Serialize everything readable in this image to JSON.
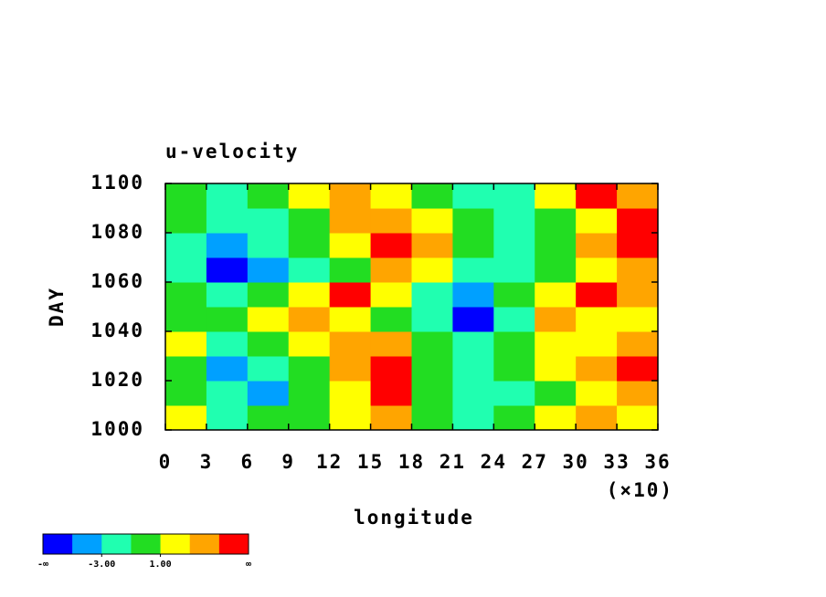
{
  "chart_data": {
    "type": "heatmap",
    "title": "u-velocity",
    "x_label": "longitude",
    "y_label": "DAY",
    "x_multiplier": "(×10)",
    "xlim": [
      0,
      36
    ],
    "xticks": [
      0,
      3,
      6,
      9,
      12,
      15,
      18,
      21,
      24,
      27,
      30,
      33,
      36
    ],
    "ylim": [
      1000,
      1100
    ],
    "yticks": [
      1000,
      1020,
      1040,
      1060,
      1080,
      1100
    ],
    "x": [
      1.5,
      4.5,
      7.5,
      10.5,
      13.5,
      16.5,
      19.5,
      22.5,
      25.5,
      28.5,
      31.5,
      34.5
    ],
    "y": [
      1005,
      1015,
      1025,
      1035,
      1045,
      1055,
      1065,
      1075,
      1085,
      1095
    ],
    "z": [
      [
        2,
        -2,
        -1,
        0,
        1,
        4,
        0,
        -2,
        -1,
        2,
        3,
        1
      ],
      [
        0,
        -3,
        -4,
        -1,
        2,
        6,
        -1,
        -3,
        -2,
        0,
        2,
        4
      ],
      [
        -1,
        -4,
        -3,
        0,
        3,
        6,
        0,
        -2,
        -1,
        1,
        3,
        5
      ],
      [
        1,
        -2,
        -1,
        2,
        4,
        3,
        -1,
        -3,
        -1,
        2,
        1,
        3
      ],
      [
        -1,
        0,
        1,
        3,
        2,
        -1,
        -3,
        -5.5,
        -3,
        4,
        2,
        1
      ],
      [
        0,
        -2,
        -1,
        2,
        6,
        1,
        -2,
        -4,
        -1,
        2,
        5,
        4
      ],
      [
        -3,
        -5.5,
        -4,
        -2,
        0,
        4,
        1,
        -2,
        -3,
        0,
        2,
        3
      ],
      [
        -2,
        -4,
        -3,
        -1,
        1,
        6,
        3,
        0,
        -2,
        -1,
        3,
        5
      ],
      [
        -1,
        -3,
        -2,
        0,
        4,
        3,
        1,
        -1,
        -2,
        0,
        2,
        6
      ],
      [
        0,
        -2,
        -1,
        1,
        3,
        2,
        0,
        -3,
        -2,
        1,
        5,
        3
      ]
    ],
    "colorbar": {
      "colors": [
        "#0000ff",
        "#00a0ff",
        "#20ffb0",
        "#22dd22",
        "#ffff00",
        "#ffa500",
        "#ff0000"
      ],
      "low_label": "-∞",
      "high_label": "∞",
      "ticks": [
        {
          "value": -3,
          "label": "-3.00"
        },
        {
          "value": 1,
          "label": "1.00"
        }
      ]
    }
  }
}
